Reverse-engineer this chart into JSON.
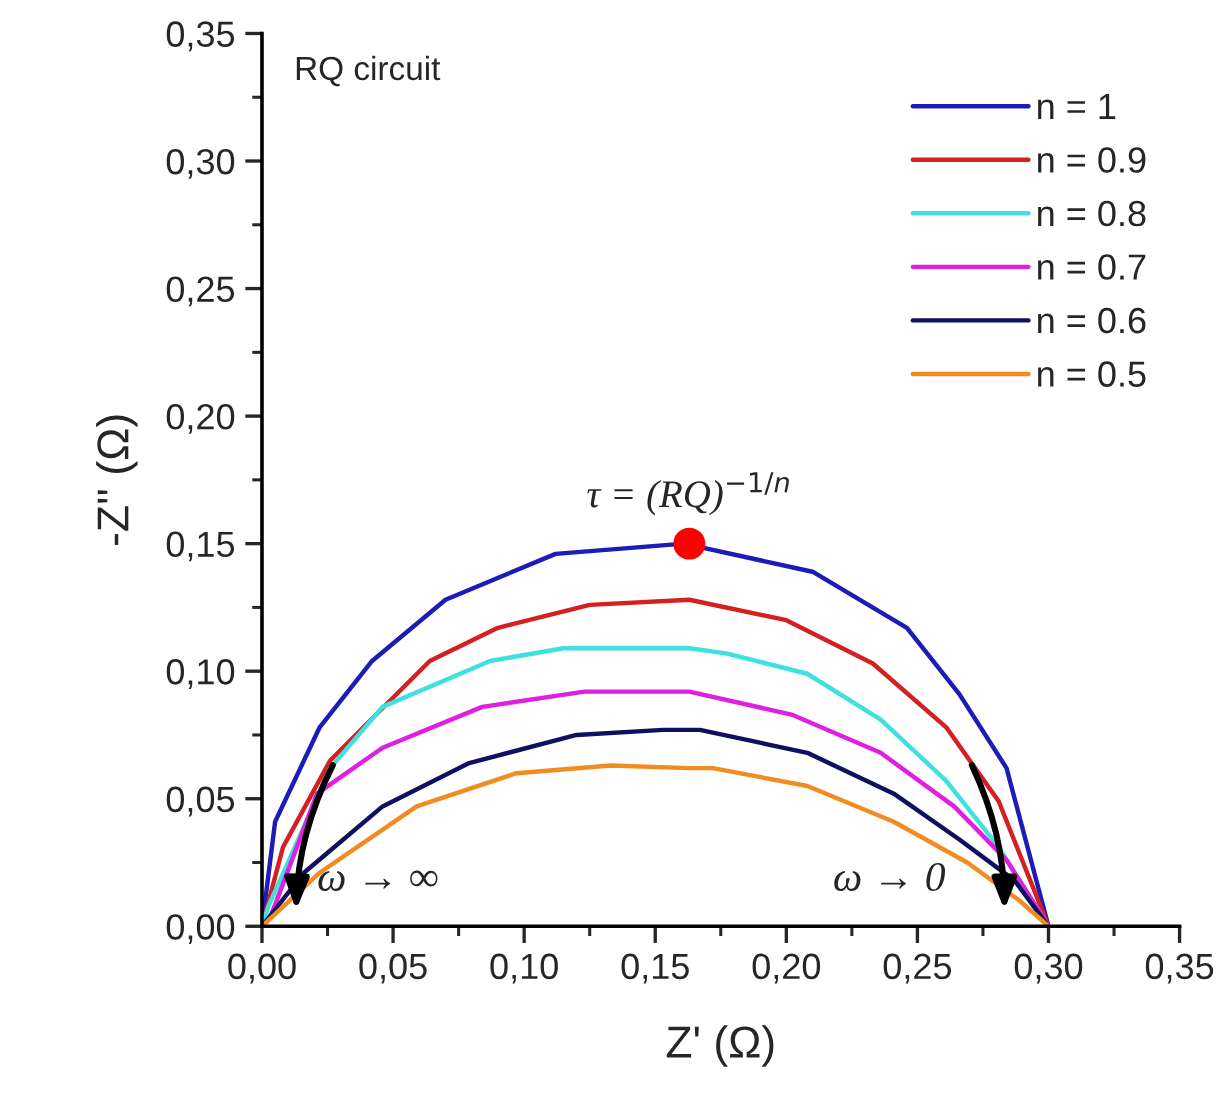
{
  "chart_data": {
    "type": "line",
    "xlabel": "Z' (Ω)",
    "ylabel": "-Z'' (Ω)",
    "xlim": [
      0,
      0.35
    ],
    "ylim": [
      0,
      0.35
    ],
    "xticks": [
      {
        "value": 0,
        "label": "0,00"
      },
      {
        "value": 0.05,
        "label": "0,05"
      },
      {
        "value": 0.1,
        "label": "0,10"
      },
      {
        "value": 0.15,
        "label": "0,15"
      },
      {
        "value": 0.2,
        "label": "0,20"
      },
      {
        "value": 0.25,
        "label": "0,25"
      },
      {
        "value": 0.3,
        "label": "0,30"
      },
      {
        "value": 0.35,
        "label": "0,35"
      }
    ],
    "yticks": [
      {
        "value": 0,
        "label": "0,00"
      },
      {
        "value": 0.05,
        "label": "0,05"
      },
      {
        "value": 0.1,
        "label": "0,10"
      },
      {
        "value": 0.15,
        "label": "0,15"
      },
      {
        "value": 0.2,
        "label": "0,20"
      },
      {
        "value": 0.25,
        "label": "0,25"
      },
      {
        "value": 0.3,
        "label": "0,30"
      },
      {
        "value": 0.35,
        "label": "0,35"
      }
    ],
    "grid": false,
    "legend": "top right",
    "marker": "none",
    "line_style": "solid",
    "series": [
      {
        "name": "n = 1",
        "color": "#1c1cb8",
        "x": [
          0,
          0.005,
          0.022,
          0.042,
          0.07,
          0.112,
          0.161,
          0.21,
          0.246,
          0.266,
          0.284,
          0.3
        ],
        "values": [
          0,
          0.041,
          0.078,
          0.104,
          0.128,
          0.146,
          0.15,
          0.139,
          0.117,
          0.091,
          0.062,
          0
        ]
      },
      {
        "name": "n = 0.9",
        "color": "#d42020",
        "x": [
          0,
          0.008,
          0.026,
          0.064,
          0.09,
          0.125,
          0.163,
          0.2,
          0.233,
          0.261,
          0.281,
          0.3
        ],
        "values": [
          0,
          0.031,
          0.065,
          0.104,
          0.117,
          0.126,
          0.128,
          0.12,
          0.103,
          0.078,
          0.049,
          0
        ]
      },
      {
        "name": "n = 0.8",
        "color": "#40e0e0",
        "x": [
          0,
          0.0025,
          0.026,
          0.046,
          0.087,
          0.115,
          0.163,
          0.177,
          0.208,
          0.236,
          0.261,
          0.281,
          0.3
        ],
        "values": [
          0,
          0.008,
          0.062,
          0.086,
          0.104,
          0.109,
          0.109,
          0.107,
          0.099,
          0.081,
          0.057,
          0.031,
          0
        ]
      },
      {
        "name": "n = 0.7",
        "color": "#e020e0",
        "x": [
          0,
          0.003,
          0.021,
          0.046,
          0.084,
          0.123,
          0.163,
          0.202,
          0.236,
          0.264,
          0.284,
          0.3
        ],
        "values": [
          0,
          0.003,
          0.052,
          0.07,
          0.086,
          0.092,
          0.092,
          0.083,
          0.068,
          0.047,
          0.026,
          0
        ]
      },
      {
        "name": "n = 0.6",
        "color": "#101060",
        "x": [
          0,
          0.016,
          0.046,
          0.079,
          0.12,
          0.153,
          0.167,
          0.208,
          0.241,
          0.266,
          0.287,
          0.3
        ],
        "values": [
          0,
          0.021,
          0.047,
          0.064,
          0.075,
          0.077,
          0.077,
          0.068,
          0.052,
          0.034,
          0.018,
          0
        ]
      },
      {
        "name": "n = 0.5",
        "color": "#f08c20",
        "x": [
          0,
          0.022,
          0.059,
          0.097,
          0.133,
          0.163,
          0.172,
          0.208,
          0.241,
          0.269,
          0.289,
          0.3
        ],
        "values": [
          0,
          0.021,
          0.047,
          0.06,
          0.063,
          0.062,
          0.062,
          0.055,
          0.041,
          0.025,
          0.01,
          0
        ]
      },
      {
        "type": "scatter",
        "color": "#ff0000",
        "marker": "circle",
        "x": [
          0.163
        ],
        "values": [
          0.15
        ]
      }
    ],
    "annotations": [
      "RQ circuit",
      {
        "text": "τ = (RQ)$^{−1/n}$",
        "x": 0.163,
        "y": 0.15
      },
      "ω → ∞",
      "ω → 0"
    ]
  }
}
